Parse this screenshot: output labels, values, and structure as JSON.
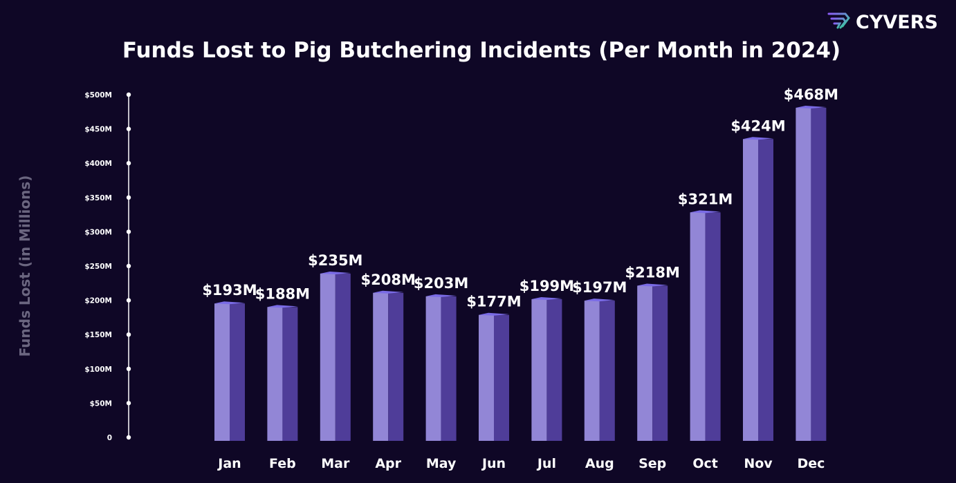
{
  "brand": {
    "name": "CYVERS",
    "icon": "cyvers-logo-icon"
  },
  "chart_data": {
    "type": "bar",
    "title": "Funds Lost to Pig Butchering Incidents (Per Month in 2024)",
    "xlabel": "",
    "ylabel": "Funds Lost (in Millions)",
    "ylim": [
      0,
      500
    ],
    "yticks": [
      "0",
      "$50M",
      "$100M",
      "$150M",
      "$200M",
      "$250M",
      "$300M",
      "$350M",
      "$400M",
      "$450M",
      "$500M"
    ],
    "categories": [
      "Jan",
      "Feb",
      "Mar",
      "Apr",
      "May",
      "Jun",
      "Jul",
      "Aug",
      "Sep",
      "Oct",
      "Nov",
      "Dec"
    ],
    "values": [
      193,
      188,
      235,
      208,
      203,
      177,
      199,
      197,
      218,
      321,
      424,
      468
    ],
    "data_labels": [
      "$193M",
      "$188M",
      "$235M",
      "$208M",
      "$203M",
      "$177M",
      "$199M",
      "$197M",
      "$218M",
      "$321M",
      "$424M",
      "$468M"
    ],
    "grid": false,
    "legend": "none",
    "colors": {
      "background": "#0f0726",
      "bar_front": "#9286d6",
      "bar_side": "#4f3d99",
      "bar_top": "#7a6be6",
      "axis": "#ffffff"
    }
  }
}
